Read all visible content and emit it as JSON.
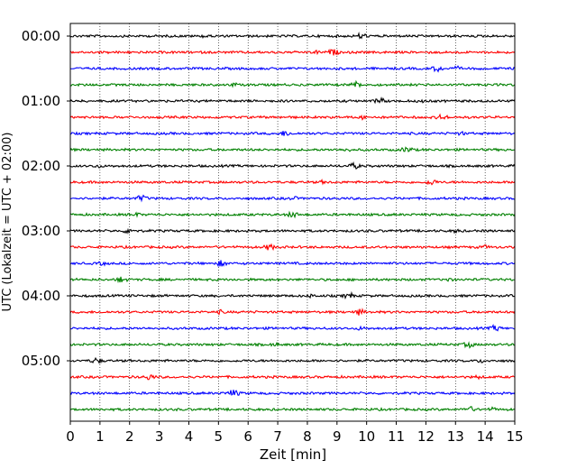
{
  "chart_data": {
    "type": "line",
    "title": "",
    "xlabel": "Zeit  [min]",
    "ylabel": "UTC (Lokalzeit = UTC + 02:00)",
    "xlim": [
      0,
      15
    ],
    "x_ticks": [
      "0",
      "1",
      "2",
      "3",
      "4",
      "5",
      "6",
      "7",
      "8",
      "9",
      "10",
      "11",
      "12",
      "13",
      "14",
      "15"
    ],
    "y_tick_labels": [
      "00:00",
      "01:00",
      "02:00",
      "03:00",
      "04:00",
      "05:00"
    ],
    "traces_per_hour": 4,
    "minutes_per_trace": 15,
    "trace_count": 24,
    "trace_colors": [
      "#000000",
      "#ff0000",
      "#0000ff",
      "#008000"
    ],
    "grid": "vertical dotted lines at each minute",
    "legend": "none"
  }
}
